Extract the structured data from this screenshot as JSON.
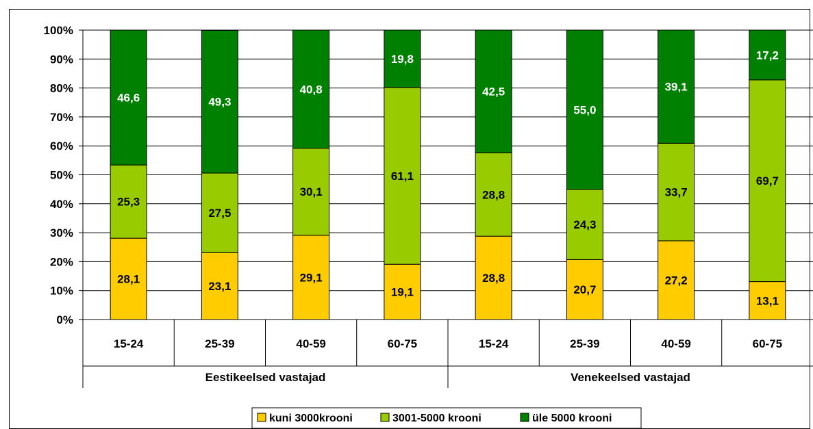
{
  "caption": "",
  "colors": {
    "kuni": "#FFCC00",
    "mid": "#99CC00",
    "yle": "#008000",
    "grid": "#000000"
  },
  "chart_data": {
    "type": "bar",
    "stacked": true,
    "y_tick_labels": [
      "0%",
      "10%",
      "20%",
      "30%",
      "40%",
      "50%",
      "60%",
      "70%",
      "80%",
      "90%",
      "100%"
    ],
    "ylim": [
      0,
      100
    ],
    "grid": true,
    "legend_position": "bottom",
    "groups": [
      {
        "name": "Eestikeelsed vastajad",
        "categories": [
          "15-24",
          "25-39",
          "40-59",
          "60-75"
        ]
      },
      {
        "name": "Venekeelsed vastajad",
        "categories": [
          "15-24",
          "25-39",
          "40-59",
          "60-75"
        ]
      }
    ],
    "series": [
      {
        "name": "kuni 3000krooni",
        "color": "#FFCC00",
        "values": [
          28.1,
          23.1,
          29.1,
          19.1,
          28.8,
          20.7,
          27.2,
          13.1
        ],
        "labels": [
          "28,1",
          "23,1",
          "29,1",
          "19,1",
          "28,8",
          "20,7",
          "27,2",
          "13,1"
        ]
      },
      {
        "name": "3001-5000 krooni",
        "color": "#99CC00",
        "values": [
          25.3,
          27.5,
          30.1,
          61.1,
          28.8,
          24.3,
          33.7,
          69.7
        ],
        "labels": [
          "25,3",
          "27,5",
          "30,1",
          "61,1",
          "28,8",
          "24,3",
          "33,7",
          "69,7"
        ]
      },
      {
        "name": "üle 5000 krooni",
        "color": "#008000",
        "values": [
          46.6,
          49.3,
          40.8,
          19.8,
          42.5,
          55.0,
          39.1,
          17.2
        ],
        "labels": [
          "46,6",
          "49,3",
          "40,8",
          "19,8",
          "42,5",
          "55,0",
          "39,1",
          "17,2"
        ]
      }
    ]
  }
}
